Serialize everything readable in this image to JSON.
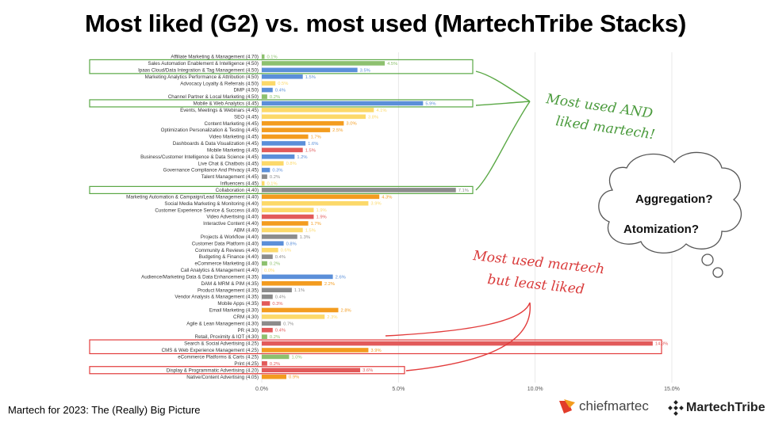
{
  "title": "Most liked (G2) vs. most used (MartechTribe Stacks)",
  "footer": "Martech for 2023: The (Really) Big Picture",
  "annotations": {
    "green_line1": "Most used AND",
    "green_line2": "liked martech!",
    "red_line1": "Most used martech",
    "red_line2": "but least liked"
  },
  "cloud": {
    "line1": "Aggregation?",
    "line2": "Atomization?"
  },
  "logos": {
    "chiefmartec": "chiefmartec",
    "martechtribe": "MartechTribe"
  },
  "colors": {
    "green": "#8dc06e",
    "blue": "#5b8fd9",
    "yellow": "#fcd96a",
    "orange": "#f39c1f",
    "red": "#e25a5a",
    "gray": "#8c8c8c",
    "highlight_green": "#5aa845",
    "highlight_red": "#e23c3c"
  },
  "chart_data": {
    "type": "bar",
    "orientation": "horizontal",
    "x_ticks": [
      "0.0%",
      "5.0%",
      "10.0%",
      "15.0%"
    ],
    "xlim": [
      0,
      15
    ],
    "grid": true,
    "bars": [
      {
        "label": "Affiliate Marketing & Management (4.70)",
        "value": 0.1,
        "value_label": "0.1%",
        "color": "green"
      },
      {
        "label": "Sales Automation Enablement & Intelligence (4.50)",
        "value": 4.5,
        "value_label": "4.5%",
        "color": "green",
        "highlight": "green"
      },
      {
        "label": "Ipaas Cloud/Data Integration & Tag Management (4.50)",
        "value": 3.5,
        "value_label": "3.5%",
        "color": "blue",
        "highlight": "green"
      },
      {
        "label": "Marketing Analytics Performance & Attribution (4.50)",
        "value": 1.5,
        "value_label": "1.5%",
        "color": "blue"
      },
      {
        "label": "Advocacy Loyalty & Referrals (4.50)",
        "value": 0.5,
        "value_label": "0.5%",
        "color": "yellow"
      },
      {
        "label": "DMP (4.50)",
        "value": 0.4,
        "value_label": "0.4%",
        "color": "blue"
      },
      {
        "label": "Channel Partner & Local Marketing (4.50)",
        "value": 0.2,
        "value_label": "0.2%",
        "color": "green"
      },
      {
        "label": "Mobile & Web Analytics (4.45)",
        "value": 5.9,
        "value_label": "5.9%",
        "color": "blue",
        "highlight": "green"
      },
      {
        "label": "Events, Meetings & Webinars (4.45)",
        "value": 4.1,
        "value_label": "4.1%",
        "color": "yellow"
      },
      {
        "label": "SEO (4.45)",
        "value": 3.8,
        "value_label": "3.8%",
        "color": "yellow"
      },
      {
        "label": "Content Marketing (4.45)",
        "value": 3.0,
        "value_label": "3.0%",
        "color": "orange"
      },
      {
        "label": "Optimization Personalization & Testing (4.45)",
        "value": 2.5,
        "value_label": "2.5%",
        "color": "orange"
      },
      {
        "label": "Video Marketing (4.45)",
        "value": 1.7,
        "value_label": "1.7%",
        "color": "orange"
      },
      {
        "label": "Dashboards & Data Visualization (4.45)",
        "value": 1.6,
        "value_label": "1.6%",
        "color": "blue"
      },
      {
        "label": "Mobile Marketing (4.45)",
        "value": 1.5,
        "value_label": "1.5%",
        "color": "red"
      },
      {
        "label": "Business/Customer Intelligence & Data Science (4.45)",
        "value": 1.2,
        "value_label": "1.2%",
        "color": "blue"
      },
      {
        "label": "Live Chat & Chatbots (4.45)",
        "value": 0.8,
        "value_label": "0.8%",
        "color": "yellow"
      },
      {
        "label": "Governance Compliance And Privacy (4.45)",
        "value": 0.3,
        "value_label": "0.3%",
        "color": "blue"
      },
      {
        "label": "Talent Management (4.45)",
        "value": 0.2,
        "value_label": "0.2%",
        "color": "gray"
      },
      {
        "label": "Influencers (4.45)",
        "value": 0.1,
        "value_label": "0.1%",
        "color": "yellow"
      },
      {
        "label": "Collaboration (4.40)",
        "value": 7.1,
        "value_label": "7.1%",
        "color": "gray",
        "highlight": "green"
      },
      {
        "label": "Marketing Automation & Campaign/Lead Management (4.40)",
        "value": 4.3,
        "value_label": "4.3%",
        "color": "orange"
      },
      {
        "label": "Social Media Marketing & Monitoring (4.40)",
        "value": 3.9,
        "value_label": "3.9%",
        "color": "yellow"
      },
      {
        "label": "Customer Experience Service & Success (4.40)",
        "value": 1.9,
        "value_label": "1.9%",
        "color": "yellow"
      },
      {
        "label": "Video Advertising (4.40)",
        "value": 1.9,
        "value_label": "1.9%",
        "color": "red"
      },
      {
        "label": "Interactive Content (4.40)",
        "value": 1.7,
        "value_label": "1.7%",
        "color": "orange"
      },
      {
        "label": "ABM (4.40)",
        "value": 1.5,
        "value_label": "1.5%",
        "color": "yellow"
      },
      {
        "label": "Projects & Workflow (4.40)",
        "value": 1.3,
        "value_label": "1.3%",
        "color": "gray"
      },
      {
        "label": "Customer Data Platform (4.40)",
        "value": 0.8,
        "value_label": "0.8%",
        "color": "blue"
      },
      {
        "label": "Community & Reviews (4.40)",
        "value": 0.6,
        "value_label": "0.6%",
        "color": "yellow"
      },
      {
        "label": "Budgeting & Finance (4.40)",
        "value": 0.4,
        "value_label": "0.4%",
        "color": "gray"
      },
      {
        "label": "eCommerce Marketing (4.40)",
        "value": 0.2,
        "value_label": "0.2%",
        "color": "green"
      },
      {
        "label": "Call Analytics & Management (4.40)",
        "value": 0.0,
        "value_label": "0.0%",
        "color": "yellow"
      },
      {
        "label": "Audience/Marketing Data & Data Enhancement (4.35)",
        "value": 2.6,
        "value_label": "2.6%",
        "color": "blue"
      },
      {
        "label": "DAM & MRM & PIM (4.35)",
        "value": 2.2,
        "value_label": "2.2%",
        "color": "orange"
      },
      {
        "label": "Product Management (4.35)",
        "value": 1.1,
        "value_label": "1.1%",
        "color": "gray"
      },
      {
        "label": "Vendor Analysis & Management (4.35)",
        "value": 0.4,
        "value_label": "0.4%",
        "color": "gray"
      },
      {
        "label": "Mobile Apps (4.35)",
        "value": 0.3,
        "value_label": "0.3%",
        "color": "red"
      },
      {
        "label": "Email Marketing (4.30)",
        "value": 2.8,
        "value_label": "2.8%",
        "color": "orange"
      },
      {
        "label": "CRM (4.30)",
        "value": 2.3,
        "value_label": "2.3%",
        "color": "yellow"
      },
      {
        "label": "Agile & Lean Management (4.30)",
        "value": 0.7,
        "value_label": "0.7%",
        "color": "gray"
      },
      {
        "label": "PR (4.30)",
        "value": 0.4,
        "value_label": "0.4%",
        "color": "red"
      },
      {
        "label": "Retail, Proximity & IOT (4.30)",
        "value": 0.2,
        "value_label": "0.2%",
        "color": "green"
      },
      {
        "label": "Search & Social Advertising (4.25)",
        "value": 14.3,
        "value_label": "14.3%",
        "color": "red",
        "highlight": "red"
      },
      {
        "label": "CMS & Web Experience Management (4.25)",
        "value": 3.9,
        "value_label": "3.9%",
        "color": "orange",
        "highlight": "red"
      },
      {
        "label": "eCommerce Platforms & Carts (4.25)",
        "value": 1.0,
        "value_label": "1.0%",
        "color": "green"
      },
      {
        "label": "Print (4.25)",
        "value": 0.2,
        "value_label": "0.2%",
        "color": "red"
      },
      {
        "label": "Display & Programmatic Advertising (4.20)",
        "value": 3.6,
        "value_label": "3.6%",
        "color": "red",
        "highlight": "red"
      },
      {
        "label": "Native/Content Advertising (4.05)",
        "value": 0.9,
        "value_label": "0.9%",
        "color": "orange"
      }
    ]
  }
}
